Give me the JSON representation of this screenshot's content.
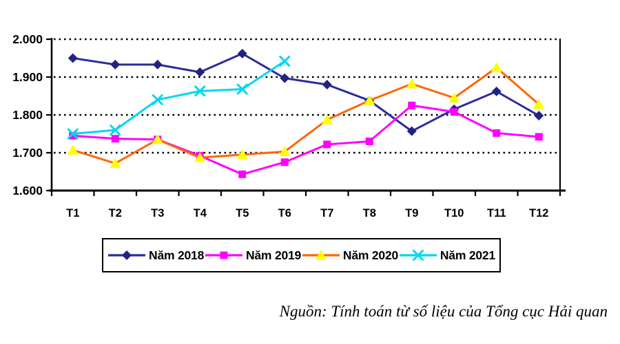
{
  "page": {
    "background": "#FFFFFF"
  },
  "source_note": "Nguồn: Tính toán từ số liệu của Tổng cục Hải quan",
  "chart_data": {
    "type": "line",
    "title": "",
    "xlabel": "",
    "ylabel": "",
    "categories": [
      "T1",
      "T2",
      "T3",
      "T4",
      "T5",
      "T6",
      "T7",
      "T8",
      "T9",
      "T10",
      "T11",
      "T12"
    ],
    "series": [
      {
        "name": "Năm 2018",
        "marker": "diamond",
        "line_color": "#2B2B9E",
        "marker_color": "#22227F",
        "values": [
          1950,
          1933,
          1933,
          1913,
          1962,
          1897,
          1880,
          1838,
          1757,
          1815,
          1862,
          1798
        ]
      },
      {
        "name": "Năm 2019",
        "marker": "square",
        "line_color": "#FF00FF",
        "marker_color": "#FF00FF",
        "values": [
          1745,
          1737,
          1735,
          1692,
          1643,
          1675,
          1722,
          1730,
          1825,
          1808,
          1752,
          1742
        ]
      },
      {
        "name": "Năm 2020",
        "marker": "triangle",
        "line_color": "#FF6600",
        "marker_color": "#FFFF00",
        "values": [
          1707,
          1672,
          1735,
          1687,
          1695,
          1703,
          1787,
          1838,
          1882,
          1845,
          1925,
          1828
        ]
      },
      {
        "name": "Năm 2021",
        "marker": "x",
        "line_color": "#00D8EE",
        "marker_color": "#00D8EE",
        "values": [
          1750,
          1760,
          1840,
          1863,
          1868,
          1942,
          null,
          null,
          null,
          null,
          null,
          null
        ]
      }
    ],
    "ylim": [
      1600,
      2000
    ],
    "yticks": [
      {
        "value": 1600,
        "label": "1.600"
      },
      {
        "value": 1700,
        "label": "1.700"
      },
      {
        "value": 1800,
        "label": "1.800"
      },
      {
        "value": 1900,
        "label": "1.900"
      },
      {
        "value": 2000,
        "label": "2.000"
      }
    ],
    "grid": "horizontal-dotted",
    "legend_position": "bottom",
    "axis_color": "#000000",
    "label_color": "#000000"
  }
}
